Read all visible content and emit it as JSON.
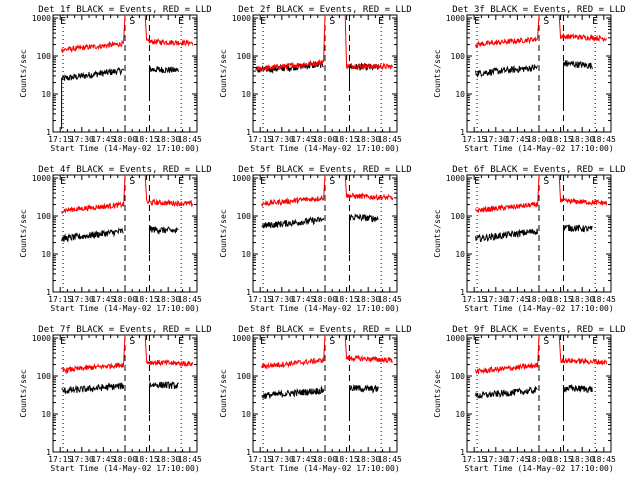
{
  "colors": {
    "events": "#000000",
    "lld": "#ff0000",
    "axis": "#000000",
    "background": "#ffffff"
  },
  "xaxis": {
    "label": "Start Time (14-May-02 17:10:00)",
    "tick_labels": [
      "17:15",
      "17:30",
      "17:45",
      "18:00",
      "18:15",
      "18:30",
      "18:45"
    ],
    "tick_minutes": [
      5,
      20,
      35,
      50,
      65,
      80,
      95
    ],
    "range_minutes": [
      0,
      100
    ]
  },
  "yaxis": {
    "label": "Counts/sec",
    "tick_labels": [
      "1000",
      "100",
      "10",
      "1"
    ],
    "tick_values": [
      1000,
      100,
      10,
      1
    ],
    "scale": "log",
    "range": [
      1,
      1200
    ]
  },
  "markers": {
    "E_label": "E",
    "S_label": "S",
    "E_minutes": [
      7,
      89
    ],
    "S_minutes": [
      55
    ],
    "dashed_minutes": [
      50,
      67
    ]
  },
  "chart_data": [
    {
      "type": "line",
      "title": "Det 1f BLACK = Events, RED = LLD",
      "series": [
        {
          "name": "Events",
          "segments": [
            {
              "t0": 6,
              "t1": 49,
              "v0": 25,
              "v1": 42,
              "drop_to": 1.2
            },
            {
              "t0": 67,
              "t1": 87,
              "v0": 45,
              "v1": 42,
              "drop_to": 8
            }
          ]
        },
        {
          "name": "LLD",
          "segments": [
            {
              "t0": 6,
              "t1": 49,
              "v0": 145,
              "v1": 210
            },
            {
              "t0": 65,
              "t1": 97,
              "v0": 240,
              "v1": 220
            }
          ]
        }
      ]
    },
    {
      "type": "line",
      "title": "Det 2f BLACK = Events, RED = LLD",
      "series": [
        {
          "name": "Events",
          "segments": [
            {
              "t0": 2,
              "t1": 49,
              "v0": 42,
              "v1": 60
            },
            {
              "t0": 67,
              "t1": 87,
              "v0": 52,
              "v1": 50,
              "drop_to": 15
            }
          ]
        },
        {
          "name": "LLD",
          "segments": [
            {
              "t0": 2,
              "t1": 49,
              "v0": 45,
              "v1": 68
            },
            {
              "t0": 65,
              "t1": 97,
              "v0": 55,
              "v1": 52
            }
          ]
        }
      ]
    },
    {
      "type": "line",
      "title": "Det 3f BLACK = Events, RED = LLD",
      "series": [
        {
          "name": "Events",
          "segments": [
            {
              "t0": 6,
              "t1": 49,
              "v0": 35,
              "v1": 50
            },
            {
              "t0": 67,
              "t1": 87,
              "v0": 65,
              "v1": 55,
              "drop_to": 5
            }
          ]
        },
        {
          "name": "LLD",
          "segments": [
            {
              "t0": 6,
              "t1": 49,
              "v0": 200,
              "v1": 280
            },
            {
              "t0": 65,
              "t1": 97,
              "v0": 330,
              "v1": 290
            }
          ]
        }
      ]
    },
    {
      "type": "line",
      "title": "Det 4f BLACK = Events, RED = LLD",
      "series": [
        {
          "name": "Events",
          "segments": [
            {
              "t0": 6,
              "t1": 49,
              "v0": 25,
              "v1": 40
            },
            {
              "t0": 67,
              "t1": 87,
              "v0": 45,
              "v1": 40,
              "drop_to": 10
            }
          ]
        },
        {
          "name": "LLD",
          "segments": [
            {
              "t0": 6,
              "t1": 49,
              "v0": 140,
              "v1": 200
            },
            {
              "t0": 65,
              "t1": 97,
              "v0": 230,
              "v1": 210
            }
          ]
        }
      ]
    },
    {
      "type": "line",
      "title": "Det 5f BLACK = Events, RED = LLD",
      "series": [
        {
          "name": "Events",
          "segments": [
            {
              "t0": 6,
              "t1": 49,
              "v0": 55,
              "v1": 80
            },
            {
              "t0": 67,
              "t1": 87,
              "v0": 95,
              "v1": 85,
              "drop_to": 10
            }
          ]
        },
        {
          "name": "LLD",
          "segments": [
            {
              "t0": 6,
              "t1": 49,
              "v0": 210,
              "v1": 300
            },
            {
              "t0": 65,
              "t1": 97,
              "v0": 340,
              "v1": 300
            }
          ]
        }
      ]
    },
    {
      "type": "line",
      "title": "Det 6f BLACK = Events, RED = LLD",
      "series": [
        {
          "name": "Events",
          "segments": [
            {
              "t0": 6,
              "t1": 49,
              "v0": 25,
              "v1": 40
            },
            {
              "t0": 67,
              "t1": 87,
              "v0": 50,
              "v1": 45,
              "drop_to": 8
            }
          ]
        },
        {
          "name": "LLD",
          "segments": [
            {
              "t0": 6,
              "t1": 49,
              "v0": 140,
              "v1": 200
            },
            {
              "t0": 65,
              "t1": 97,
              "v0": 250,
              "v1": 220
            }
          ]
        }
      ]
    },
    {
      "type": "line",
      "title": "Det 7f BLACK = Events, RED = LLD",
      "series": [
        {
          "name": "Events",
          "segments": [
            {
              "t0": 6,
              "t1": 49,
              "v0": 40,
              "v1": 55
            },
            {
              "t0": 67,
              "t1": 87,
              "v0": 60,
              "v1": 55,
              "drop_to": 10
            }
          ]
        },
        {
          "name": "LLD",
          "segments": [
            {
              "t0": 6,
              "t1": 49,
              "v0": 140,
              "v1": 200
            },
            {
              "t0": 65,
              "t1": 97,
              "v0": 230,
              "v1": 210
            }
          ]
        }
      ]
    },
    {
      "type": "line",
      "title": "Det 8f BLACK = Events, RED = LLD",
      "series": [
        {
          "name": "Events",
          "segments": [
            {
              "t0": 6,
              "t1": 49,
              "v0": 30,
              "v1": 42
            },
            {
              "t0": 67,
              "t1": 87,
              "v0": 48,
              "v1": 45,
              "drop_to": 8
            }
          ]
        },
        {
          "name": "LLD",
          "segments": [
            {
              "t0": 6,
              "t1": 49,
              "v0": 180,
              "v1": 260
            },
            {
              "t0": 65,
              "t1": 97,
              "v0": 300,
              "v1": 260
            }
          ]
        }
      ]
    },
    {
      "type": "line",
      "title": "Det 9f BLACK = Events, RED = LLD",
      "series": [
        {
          "name": "Events",
          "segments": [
            {
              "t0": 6,
              "t1": 49,
              "v0": 30,
              "v1": 42
            },
            {
              "t0": 67,
              "t1": 87,
              "v0": 48,
              "v1": 45,
              "drop_to": 8
            }
          ]
        },
        {
          "name": "LLD",
          "segments": [
            {
              "t0": 6,
              "t1": 49,
              "v0": 130,
              "v1": 190
            },
            {
              "t0": 65,
              "t1": 97,
              "v0": 260,
              "v1": 230
            }
          ]
        }
      ]
    }
  ]
}
